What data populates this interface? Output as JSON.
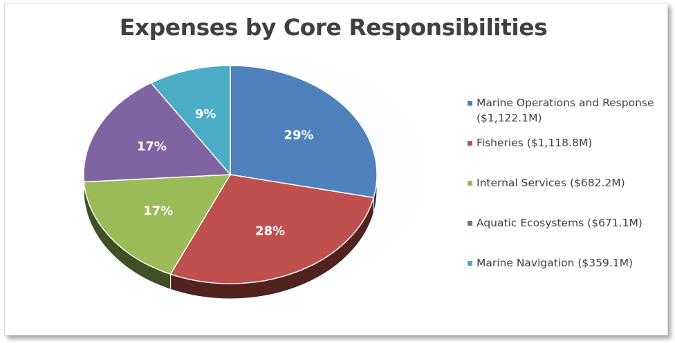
{
  "chart_data": {
    "type": "pie",
    "title": "Expenses by Core Responsibilities",
    "labels": [
      "Marine Operations and Response ($1,122.1M)",
      "Fisheries ($1,118.8M)",
      "Internal Services ($682.2M)",
      "Aquatic Ecosystems ($671.1M)",
      "Marine Navigation ($359.1M)"
    ],
    "values": [
      1122.1,
      1118.8,
      682.2,
      671.1,
      359.1
    ],
    "percent_labels": [
      "29%",
      "28%",
      "17%",
      "17%",
      "9%"
    ],
    "colors": [
      "#4f81bd",
      "#c0504d",
      "#9bbb59",
      "#8064a2",
      "#4bacc6"
    ],
    "legend_position": "right"
  }
}
